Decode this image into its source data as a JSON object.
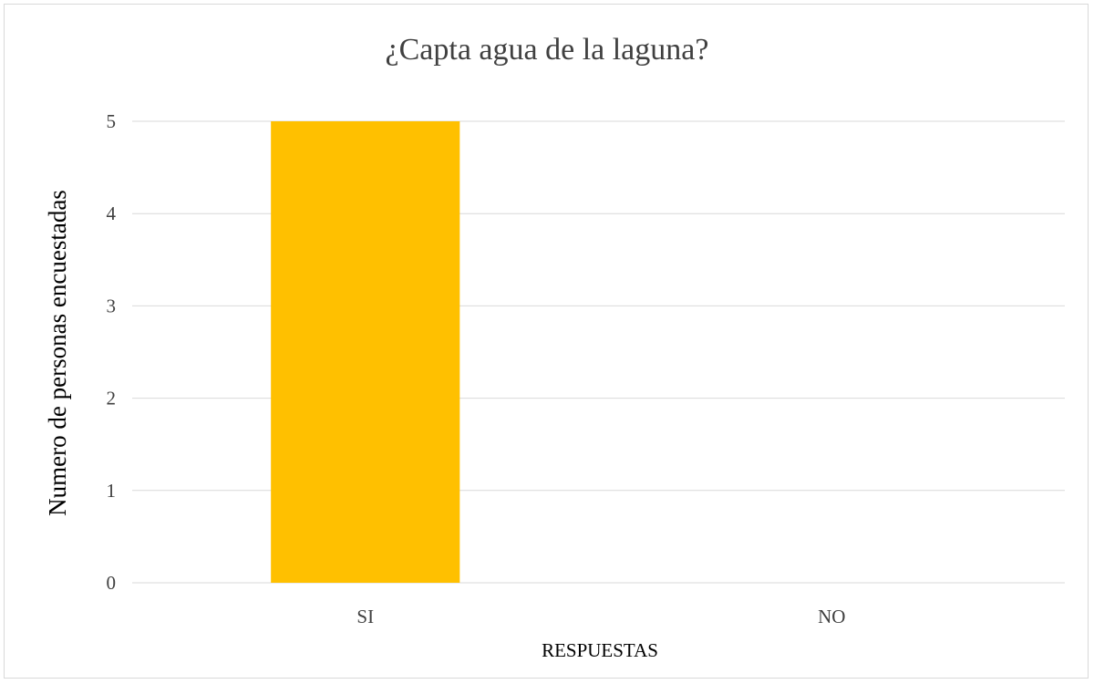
{
  "chart_data": {
    "type": "bar",
    "title": "¿Capta agua de la laguna?",
    "xlabel": "RESPUESTAS",
    "ylabel": "Numero de personas encuestadas",
    "categories": [
      "SI",
      "NO"
    ],
    "values": [
      5,
      0
    ],
    "ylim": [
      0,
      5
    ],
    "yticks": [
      "0",
      "1",
      "2",
      "3",
      "4",
      "5"
    ],
    "grid": true,
    "legend": "none",
    "bar_color": "#FFC000",
    "grid_color": "#d9d9d9"
  }
}
